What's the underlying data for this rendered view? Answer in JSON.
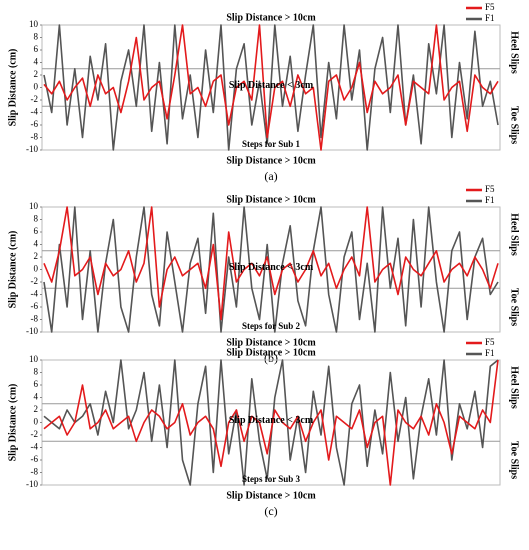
{
  "chart_data": [
    {
      "type": "line",
      "ylabel": "Slip Distance (cm)",
      "xlabel": "Steps for Sub 1",
      "caption": "(a)",
      "annotations": [
        "Slip Distance > 10cm",
        "Slip Distance < 3cm",
        "Slip Distance > 10cm"
      ],
      "right_labels": [
        "Heel Slips",
        "Toe Slips"
      ],
      "ylim": [
        -10,
        10
      ],
      "yticks": [
        10,
        8,
        6,
        4,
        2,
        0,
        -2,
        -4,
        -6,
        -8,
        -10
      ],
      "reference_lines": [
        3,
        -3
      ],
      "series": [
        {
          "name": "F5",
          "color": "#e31a1c",
          "values": [
            0.5,
            -1,
            1,
            -2,
            0,
            1.5,
            -3,
            2,
            -1,
            0,
            -4,
            1,
            8,
            -2,
            0,
            1,
            -5,
            2,
            10,
            -1,
            0,
            -3,
            1,
            2,
            -6,
            0,
            1,
            -2,
            10,
            -8,
            0,
            1,
            -3,
            2,
            -1,
            0,
            -10,
            1,
            2,
            -2,
            0,
            4,
            -4,
            1,
            -1,
            0,
            2,
            -6,
            1,
            0,
            -1,
            10,
            -2,
            0,
            1,
            -7,
            2,
            0,
            -1,
            1
          ]
        },
        {
          "name": "F1",
          "color": "#555555",
          "values": [
            2,
            -4,
            10,
            -6,
            3,
            -8,
            5,
            -2,
            7,
            -10,
            1,
            6,
            -3,
            10,
            -7,
            4,
            -9,
            10,
            -5,
            2,
            -8,
            6,
            -4,
            10,
            -10,
            3,
            7,
            -6,
            1,
            -9,
            10,
            -3,
            5,
            -7,
            2,
            10,
            -8,
            4,
            -5,
            10,
            -2,
            6,
            -10,
            3,
            8,
            -4,
            10,
            -6,
            2,
            -9,
            7,
            -1,
            10,
            -8,
            4,
            -5,
            9,
            -3,
            1,
            -6
          ]
        }
      ]
    },
    {
      "type": "line",
      "ylabel": "Slip Distance (cm)",
      "xlabel": "Steps for Sub 2",
      "caption": "(b)",
      "annotations": [
        "Slip Distance > 10cm",
        "Slip Distance < 3cm",
        "Slip Distance > 10cm"
      ],
      "right_labels": [
        "Heel Slips",
        "Toe Slips"
      ],
      "ylim": [
        -10,
        10
      ],
      "yticks": [
        10,
        8,
        6,
        4,
        2,
        0,
        -2,
        -4,
        -6,
        -8,
        -10
      ],
      "reference_lines": [
        3,
        -3
      ],
      "series": [
        {
          "name": "F5",
          "color": "#e31a1c",
          "values": [
            1,
            -2,
            3,
            10,
            -1,
            0,
            2,
            -4,
            1,
            -1,
            0,
            3,
            -2,
            1,
            10,
            -6,
            0,
            2,
            -1,
            0,
            1,
            -3,
            4,
            -8,
            6,
            -2,
            0,
            1,
            -1,
            2,
            -4,
            0,
            1,
            -2,
            0,
            3,
            -1,
            1,
            -3,
            0,
            2,
            -1,
            10,
            -2,
            0,
            1,
            -4,
            2,
            0,
            -1,
            1,
            3,
            -2,
            0,
            1,
            -1,
            2,
            0,
            -3,
            1
          ]
        },
        {
          "name": "F1",
          "color": "#555555",
          "values": [
            -2,
            -10,
            4,
            -6,
            10,
            -8,
            3,
            -10,
            1,
            8,
            -6,
            -10,
            2,
            10,
            -4,
            -9,
            6,
            -2,
            -10,
            1,
            5,
            -7,
            9,
            -10,
            2,
            -6,
            10,
            -3,
            -8,
            4,
            -10,
            1,
            7,
            -5,
            -9,
            3,
            10,
            -4,
            -10,
            2,
            6,
            -8,
            1,
            -10,
            10,
            -3,
            5,
            -9,
            8,
            -6,
            10,
            -2,
            -10,
            3,
            6,
            -8,
            2,
            5,
            -4,
            -2
          ]
        }
      ]
    },
    {
      "type": "line",
      "ylabel": "Slip Distance (cm)",
      "xlabel": "Steps for Sub 3",
      "caption": "(c)",
      "annotations": [
        "Slip Distance > 10cm",
        "Slip Distance < 3cm",
        "Slip Distance > 10cm"
      ],
      "right_labels": [
        "Heel Slips",
        "Toe Slips"
      ],
      "ylim": [
        -10,
        10
      ],
      "yticks": [
        10,
        8,
        6,
        4,
        2,
        0,
        -2,
        -4,
        -6,
        -8,
        -10
      ],
      "reference_lines": [
        3,
        -3
      ],
      "series": [
        {
          "name": "F5",
          "color": "#e31a1c",
          "values": [
            -1,
            0,
            1,
            -2,
            0,
            6,
            -1,
            0,
            2,
            -1,
            0,
            1,
            -3,
            0,
            2,
            1,
            -1,
            0,
            3,
            -2,
            0,
            1,
            -1,
            -7,
            0,
            2,
            -3,
            1,
            0,
            -5,
            2,
            0,
            -1,
            1,
            -3,
            0,
            2,
            -6,
            1,
            0,
            -1,
            2,
            -4,
            0,
            1,
            -10,
            2,
            0,
            -1,
            1,
            -2,
            3,
            0,
            -5,
            1,
            0,
            -1,
            2,
            0,
            10
          ]
        },
        {
          "name": "F1",
          "color": "#555555",
          "values": [
            1,
            0,
            -1,
            2,
            0,
            1,
            3,
            -2,
            5,
            0,
            10,
            -1,
            2,
            8,
            -3,
            6,
            -4,
            10,
            -6,
            -10,
            3,
            9,
            -8,
            10,
            -5,
            2,
            -10,
            7,
            -3,
            -9,
            4,
            10,
            -6,
            1,
            -8,
            5,
            -2,
            9,
            -4,
            -10,
            3,
            6,
            -7,
            2,
            -5,
            8,
            -3,
            4,
            -9,
            1,
            7,
            -2,
            10,
            -6,
            3,
            -1,
            5,
            -4,
            9,
            10
          ]
        }
      ]
    }
  ]
}
